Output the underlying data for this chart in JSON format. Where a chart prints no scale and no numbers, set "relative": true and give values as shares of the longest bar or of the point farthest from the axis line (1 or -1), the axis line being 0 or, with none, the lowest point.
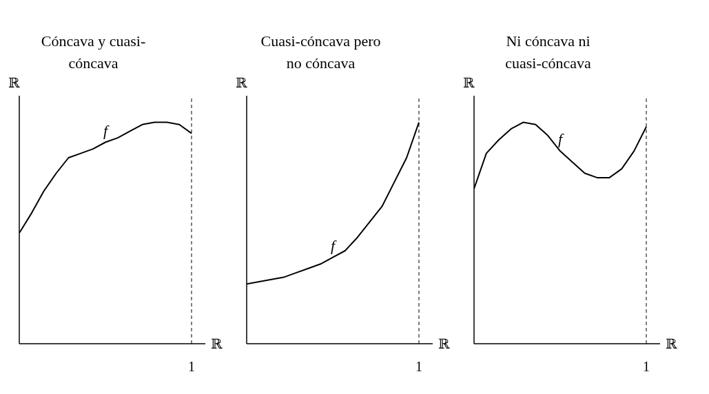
{
  "chart_data": [
    {
      "type": "line",
      "title": "Cóncava y cuasi-cóncava",
      "xlabel": "ℝ",
      "ylabel": "ℝ",
      "relative": true,
      "categories": [
        null,
        null,
        null,
        null,
        null,
        null,
        null,
        null,
        null,
        null,
        null,
        null,
        null,
        null,
        null
      ],
      "series": [
        {
          "color": "#000000",
          "values": [
            0.5,
            0.59,
            0.69,
            0.77,
            0.84,
            0.86,
            0.88,
            0.91,
            0.93,
            0.96,
            0.99,
            1.0,
            1.0,
            0.99,
            0.95
          ]
        }
      ],
      "annotations": [
        "f"
      ],
      "ref_lines": [
        {
          "axis": "x",
          "label": "1",
          "line_style": "dashed",
          "color": "#000000"
        }
      ],
      "marker": "none",
      "line_style": "solid"
    },
    {
      "type": "line",
      "title": "Cuasi-cóncava pero no cóncava",
      "xlabel": "ℝ",
      "ylabel": "ℝ",
      "relative": true,
      "categories": [
        null,
        null,
        null,
        null,
        null,
        null,
        null,
        null,
        null,
        null,
        null,
        null,
        null,
        null,
        null
      ],
      "series": [
        {
          "color": "#000000",
          "values": [
            0.27,
            0.28,
            0.29,
            0.3,
            0.32,
            0.34,
            0.36,
            0.39,
            0.42,
            0.48,
            0.55,
            0.62,
            0.73,
            0.84,
            1.0
          ]
        }
      ],
      "annotations": [
        "f"
      ],
      "ref_lines": [
        {
          "axis": "x",
          "label": "1",
          "line_style": "dashed",
          "color": "#000000"
        }
      ],
      "marker": "none",
      "line_style": "solid"
    },
    {
      "type": "line",
      "title": "Ni cóncava ni cuasi-cóncava",
      "xlabel": "ℝ",
      "ylabel": "ℝ",
      "relative": true,
      "categories": [
        null,
        null,
        null,
        null,
        null,
        null,
        null,
        null,
        null,
        null,
        null,
        null,
        null,
        null,
        null
      ],
      "series": [
        {
          "color": "#000000",
          "values": [
            0.7,
            0.86,
            0.92,
            0.97,
            1.0,
            0.99,
            0.94,
            0.87,
            0.82,
            0.77,
            0.75,
            0.75,
            0.79,
            0.87,
            0.98
          ]
        }
      ],
      "annotations": [
        "f"
      ],
      "ref_lines": [
        {
          "axis": "x",
          "label": "1",
          "line_style": "dashed",
          "color": "#000000"
        }
      ],
      "marker": "none",
      "line_style": "solid"
    }
  ]
}
